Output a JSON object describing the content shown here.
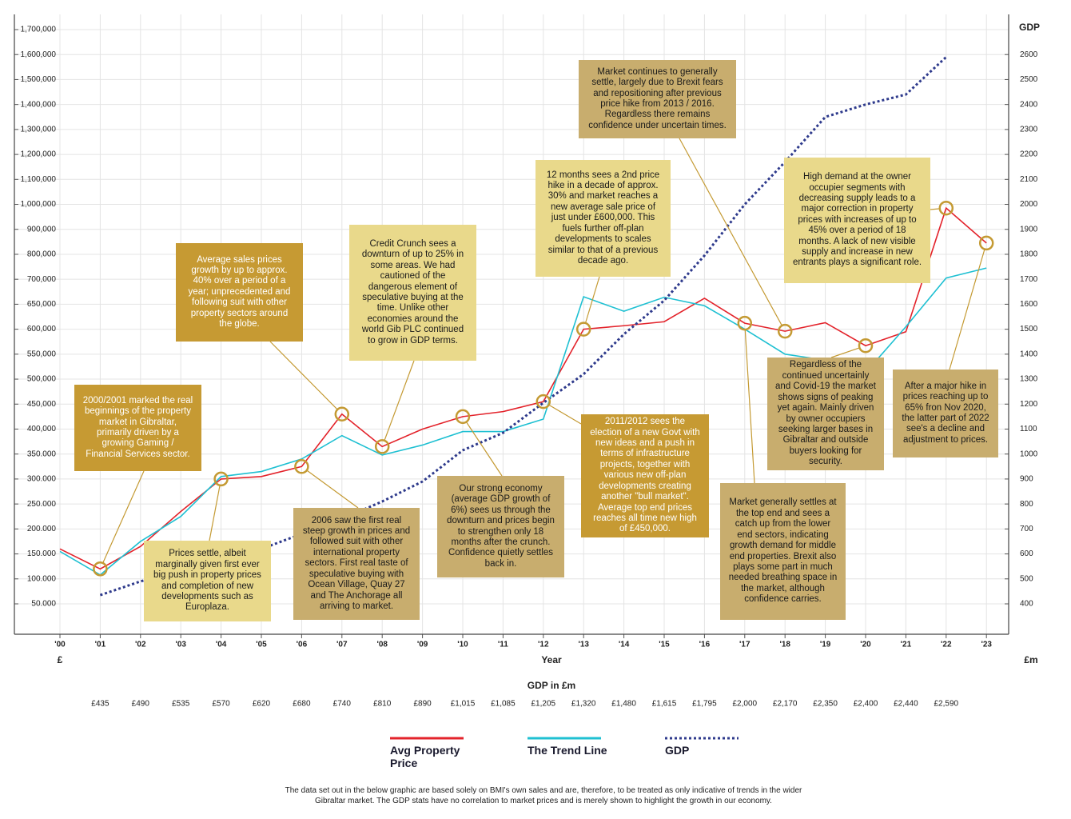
{
  "chart_data": {
    "type": "line",
    "xlabel": "Year",
    "left_unit": "£",
    "right_unit": "£m",
    "y2label": "GDP",
    "gdp_row_title": "GDP in £m",
    "categories": [
      "'00",
      "'01",
      "'02",
      "'03",
      "'04",
      "'05",
      "'06",
      "'07",
      "'08",
      "'09",
      "'10",
      "'11",
      "'12",
      "'13",
      "'14",
      "'15",
      "'16",
      "'17",
      "'18",
      "'19",
      "'20",
      "'21",
      "'22",
      "'23"
    ],
    "ylim": [
      0,
      1700000
    ],
    "yticks": [
      {
        "value": 1700000,
        "label": "1,700,000"
      },
      {
        "value": 1600000,
        "label": "1,600,000"
      },
      {
        "value": 1500000,
        "label": "1,500,000"
      },
      {
        "value": 1400000,
        "label": "1,400,000"
      },
      {
        "value": 1300000,
        "label": "1,300,000"
      },
      {
        "value": 1200000,
        "label": "1,200,000"
      },
      {
        "value": 1100000,
        "label": "1,100,000"
      },
      {
        "value": 1000000,
        "label": "1,000,000"
      },
      {
        "value": 900000,
        "label": "900,000"
      },
      {
        "value": 800000,
        "label": "800,000"
      },
      {
        "value": 700000,
        "label": "700,000"
      },
      {
        "value": 650000,
        "label": "650,000"
      },
      {
        "value": 600000,
        "label": "600,000"
      },
      {
        "value": 550000,
        "label": "550,000"
      },
      {
        "value": 500000,
        "label": "500,000"
      },
      {
        "value": 450000,
        "label": "450,000"
      },
      {
        "value": 400000,
        "label": "400,000"
      },
      {
        "value": 350000,
        "label": "350.000"
      },
      {
        "value": 300000,
        "label": "300.000"
      },
      {
        "value": 250000,
        "label": "250.000"
      },
      {
        "value": 200000,
        "label": "200.000"
      },
      {
        "value": 150000,
        "label": "150.000"
      },
      {
        "value": 100000,
        "label": "100.000"
      },
      {
        "value": 50000,
        "label": "50.000"
      }
    ],
    "y2lim": [
      300,
      2700
    ],
    "y2ticks": [
      2600,
      2500,
      2400,
      2300,
      2200,
      2100,
      2000,
      1900,
      1800,
      1700,
      1600,
      1500,
      1400,
      1300,
      1200,
      1100,
      1000,
      900,
      800,
      700,
      600,
      500,
      400
    ],
    "grid": true,
    "series": [
      {
        "name": "Avg Property Price",
        "color": "#e3232b",
        "values": [
          160000,
          120000,
          165000,
          235000,
          300000,
          305000,
          325000,
          430000,
          365000,
          400000,
          425000,
          435000,
          455000,
          600000,
          607000,
          615000,
          662000,
          612000,
          596000,
          613000,
          567000,
          595000,
          985000,
          845000
        ]
      },
      {
        "name": "The Trend Line",
        "color": "#1fc0d2",
        "values": [
          155000,
          108000,
          175000,
          225000,
          305000,
          315000,
          340000,
          387000,
          348000,
          368000,
          395000,
          395000,
          420000,
          665000,
          636000,
          664000,
          647000,
          600000,
          550000,
          538000,
          513000,
          605000,
          705000,
          745000
        ]
      },
      {
        "name": "GDP",
        "color": "#2e3a8c",
        "axis": "y2",
        "style": "dotted",
        "values": [
          null,
          435,
          490,
          535,
          570,
          620,
          680,
          740,
          810,
          890,
          1015,
          1085,
          1205,
          1320,
          1480,
          1615,
          1795,
          2000,
          2170,
          2350,
          2400,
          2440,
          2590,
          null
        ],
        "value_labels": [
          null,
          "£435",
          "£490",
          "£535",
          "£570",
          "£620",
          "£680",
          "£740",
          "£810",
          "£890",
          "£1,015",
          "£1,085",
          "£1,205",
          "£1,320",
          "£1,480",
          "£1,615",
          "£1,795",
          "£2,000",
          "£2,170",
          "£2,350",
          "£2,400",
          "£2,440",
          "£2,590",
          null
        ]
      }
    ],
    "annotations": [
      "2000/2001 marked the real beginnings of the property market in Gibraltar, primarily driven by a growing Gaming / Financial Services sector.",
      "Prices settle, albeit marginally given first ever big push in property prices and completion of new developments such as Europlaza.",
      "Average sales prices growth by up to approx. 40% over a period of a year; unprecedented and following suit with other property sectors around the globe.",
      "2006 saw the first real steep growth in prices and followed suit with other international property sectors. First real taste of speculative buying with Ocean Village, Quay 27 and The Anchorage all arriving to market.",
      "Credit Crunch sees a downturn of up to 25% in some areas. We had cautioned of the dangerous element of speculative buying at the time. Unlike other economies around the world Gib PLC continued to grow in GDP terms.",
      "Our strong economy (average GDP growth of 6%) sees us through the downturn and prices begin to strengthen only 18 months after the crunch. Confidence quietly settles back in.",
      "12 months sees a 2nd price hike in a decade of approx. 30% and market reaches a new average sale price of just under £600,000. This fuels further off-plan developments to scales similar to that of a previous decade ago.",
      "2011/2012 sees the election of a new Govt with new ideas and a push in terms of infrastructure projects, together with various new off-plan developments creating another \"bull market\". Average top end prices reaches all time new high of £450,000.",
      "Market continues to generally settle, largely due to Brexit fears and repositioning after previous price hike from 2013 / 2016. Regardless there remains confidence under uncertain times.",
      "High demand at the owner occupier segments with decreasing supply leads to a major correction in property prices with increases of up to 45% over a period of 18 months. A lack of new visible supply and increase in new entrants plays a significant role.",
      "Regardless of the continued uncertainly and Covid-19 the market shows signs of peaking yet again. Mainly driven by owner occupiers seeking larger bases in Gibraltar and outside buyers looking for security.",
      "Market generally settles at the top end and sees a catch up from the lower end sectors, indicating growth demand for middle end properties. Brexit also plays some part in much needed breathing space in the market, although confidence carries.",
      "After a major hike in prices reaching up to 65% fron Nov 2020, the latter part of 2022 see's a decline and adjustment to prices."
    ],
    "footnote": "The data set out in the below graphic are based solely on BMI's own sales and are, therefore, to be treated as only indicative of trends in the wider Gibraltar market. The GDP stats have no correlation to market prices and is merely shown to highlight the growth in our economy."
  }
}
